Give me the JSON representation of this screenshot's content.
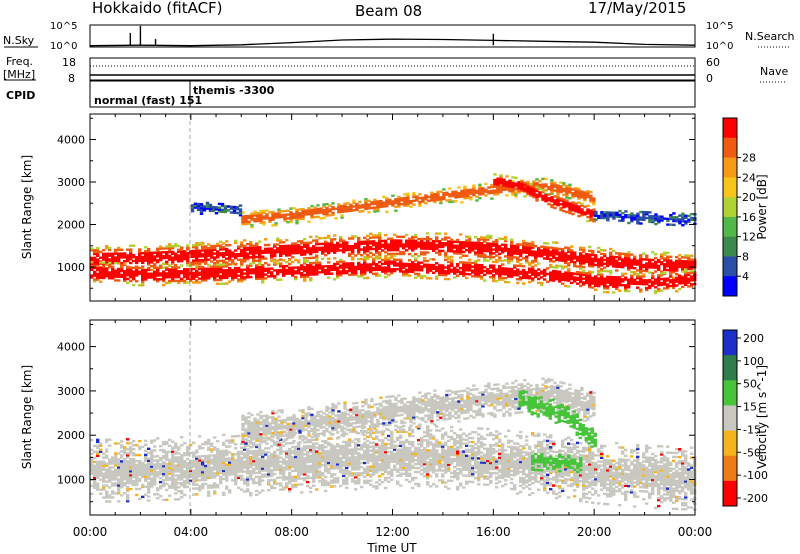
{
  "header": {
    "station": "Hokkaido (fitACF)",
    "beam": "Beam 08",
    "date": "17/May/2015"
  },
  "strip_panels": {
    "nsky_label": "N.Sky",
    "nsky_ticks": [
      "10^5",
      "10^0"
    ],
    "nsearch_label": "N.Search",
    "freq_label": "Freq.",
    "freq_unit": "[MHz]",
    "freq_ticks": [
      "18",
      "8"
    ],
    "nave_label": "Nave",
    "nave_ticks": [
      "60",
      "0"
    ],
    "cpid_label": "CPID",
    "cpid_entries": [
      "normal (fast) 151",
      "themis -3300"
    ]
  },
  "colors": {
    "power_scale": [
      "#0000ff",
      "#2a4fa8",
      "#3c8a4d",
      "#52b848",
      "#b2d233",
      "#f8c41a",
      "#f59b16",
      "#ef5b10",
      "#ff0000"
    ],
    "velocity_scale": [
      "#1c2fc8",
      "#2e7d4a",
      "#46c43a",
      "#c8c8c0",
      "#f5b41e",
      "#f07a14",
      "#ff0000"
    ]
  },
  "chart_data": [
    {
      "type": "line",
      "panel": "nsky",
      "ylabel": "N.Sky",
      "x": [
        0,
        2,
        4,
        6,
        8,
        10,
        12,
        14,
        16,
        18,
        20,
        22,
        24
      ],
      "y_log10": [
        0.3,
        0.4,
        0.3,
        0.5,
        1.0,
        1.6,
        1.8,
        1.7,
        1.5,
        1.3,
        1.1,
        0.6,
        0.4
      ],
      "ylim_log10": [
        0,
        5
      ],
      "ticks": [
        "10^5",
        "10^0"
      ]
    },
    {
      "type": "line",
      "panel": "frequency",
      "ylabel": "Freq. [MHz]",
      "x": [
        0,
        24
      ],
      "y": [
        10.3,
        10.3
      ],
      "ylim": [
        8,
        18
      ],
      "right_axis": {
        "label": "Nave",
        "ylim": [
          0,
          60
        ],
        "ticks": [
          "60",
          "0"
        ]
      }
    },
    {
      "type": "heatmap",
      "panel": "power",
      "title": "",
      "xlabel": "",
      "ylabel": "Slant Range [km]",
      "xlim": [
        0,
        24
      ],
      "ylim": [
        200,
        4600
      ],
      "yticks": [
        1000,
        2000,
        3000,
        4000
      ],
      "colorbar": {
        "label": "Power [dB]",
        "ticks": [
          "4",
          "8",
          "12",
          "16",
          "20",
          "24",
          "28"
        ],
        "range": [
          0,
          32
        ]
      },
      "regions": [
        {
          "x": [
            0,
            24
          ],
          "range_center": [
            1180,
            1200,
            1250,
            1320,
            1380,
            1450,
            1500,
            1480,
            1420,
            1300,
            1150,
            1050,
            1000
          ],
          "width": 300,
          "level": "strong"
        },
        {
          "x": [
            0,
            24
          ],
          "range_center": [
            850,
            800,
            820,
            850,
            900,
            950,
            1000,
            950,
            900,
            800,
            650,
            600,
            700
          ],
          "width": 250,
          "level": "strong"
        },
        {
          "x": [
            6,
            20
          ],
          "range_center": [
            2100,
            2200,
            2350,
            2500,
            2650,
            2800,
            2900,
            2600
          ],
          "width": 200,
          "level": "medium"
        },
        {
          "x": [
            16,
            20
          ],
          "range_center": [
            3000,
            2900,
            2600,
            2400,
            2200
          ],
          "width": 200,
          "level": "strong"
        },
        {
          "x": [
            4,
            6
          ],
          "range_center": [
            2400,
            2300
          ],
          "width": 150,
          "level": "weak"
        },
        {
          "x": [
            20,
            24
          ],
          "range_center": [
            2200,
            2100
          ],
          "width": 150,
          "level": "weak"
        }
      ]
    },
    {
      "type": "heatmap",
      "panel": "velocity",
      "title": "",
      "xlabel": "Time UT",
      "ylabel": "Slant Range [km]",
      "xlim": [
        0,
        24
      ],
      "ylim": [
        200,
        4600
      ],
      "xticks": [
        "00:00",
        "04:00",
        "08:00",
        "12:00",
        "16:00",
        "20:00",
        "00:00"
      ],
      "yticks": [
        1000,
        2000,
        3000,
        4000
      ],
      "colorbar": {
        "label": "Velocity [m s^-1]",
        "ticks": [
          "200",
          "100",
          "50",
          "15",
          "-15",
          "-50",
          "-100",
          "-200"
        ],
        "range": [
          -250,
          250
        ]
      },
      "regions": [
        {
          "x": [
            0,
            24
          ],
          "range_center": [
            1180,
            1200,
            1250,
            1320,
            1380,
            1450,
            1500,
            1480,
            1420,
            1300,
            1150,
            1050,
            1000
          ],
          "width": 700,
          "level": "near-zero"
        },
        {
          "x": [
            6,
            20
          ],
          "range_center": [
            2100,
            2200,
            2350,
            2500,
            2650,
            2800,
            2900,
            2600
          ],
          "width": 400,
          "level": "near-zero"
        },
        {
          "x": [
            17,
            20
          ],
          "range_center": [
            2800,
            2600,
            2400,
            1800
          ],
          "width": 250,
          "level": "positive"
        },
        {
          "x": [
            17.5,
            19.5
          ],
          "range_center": [
            1400,
            1350
          ],
          "width": 200,
          "level": "positive"
        }
      ]
    }
  ]
}
